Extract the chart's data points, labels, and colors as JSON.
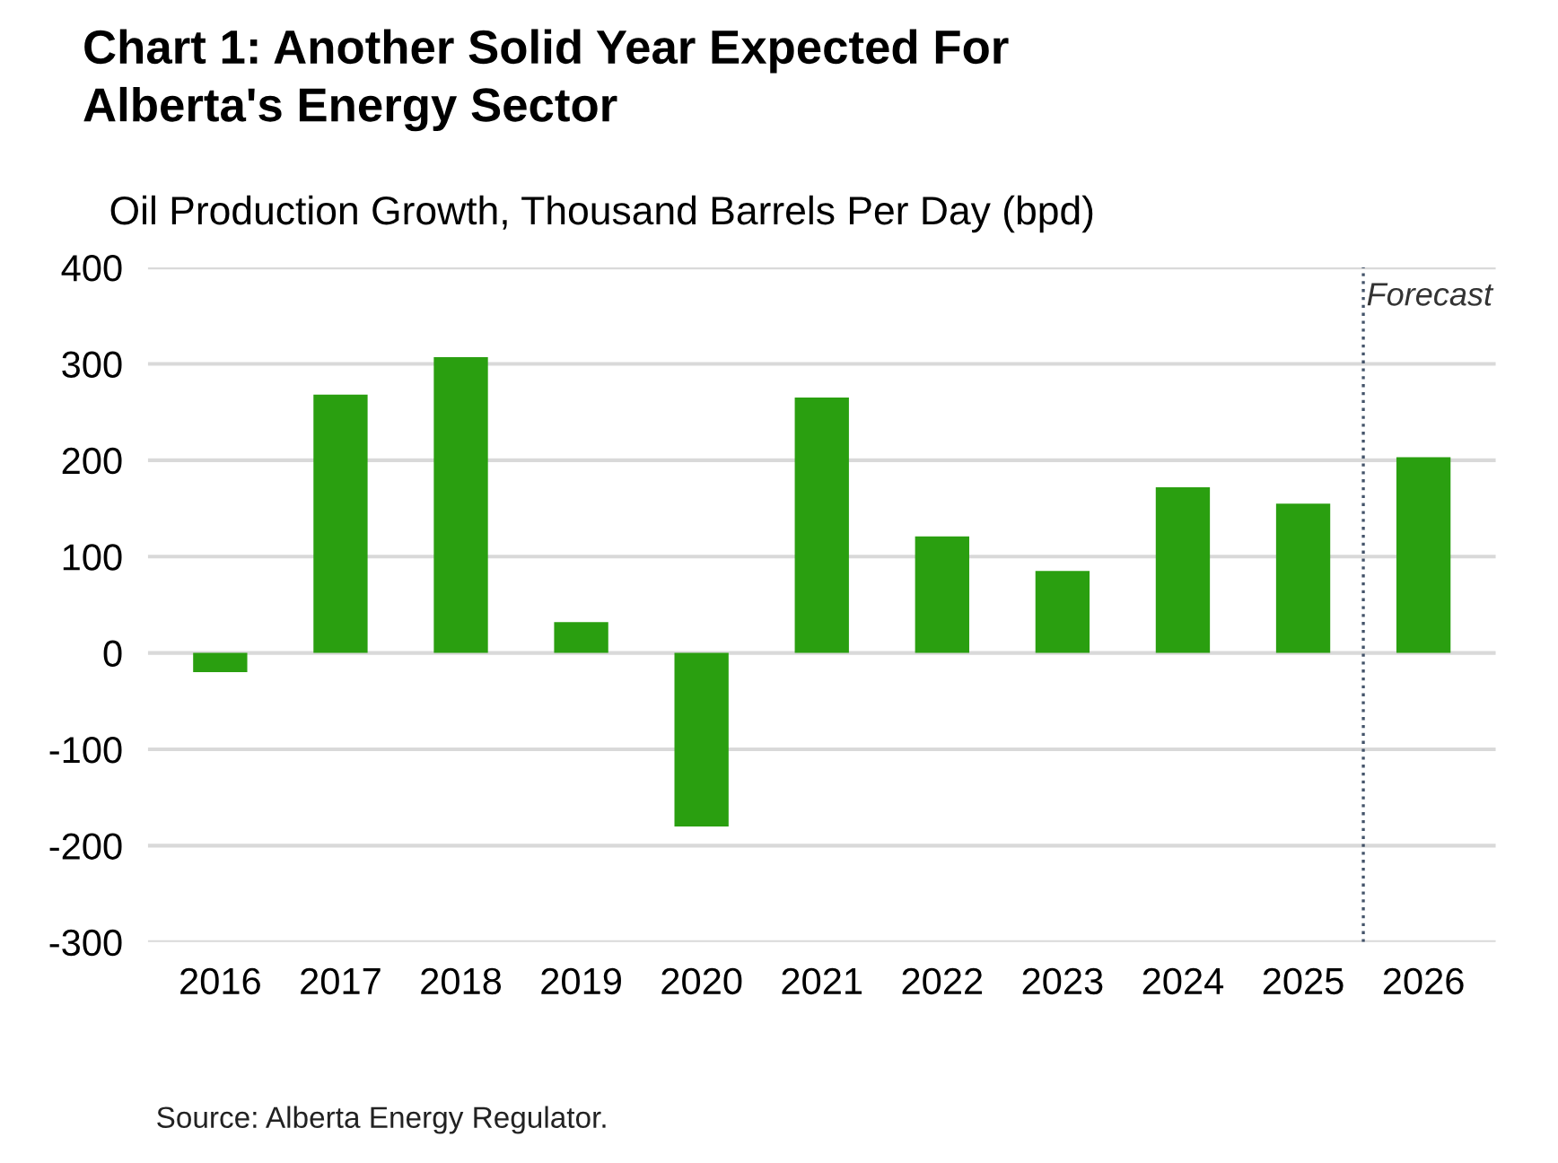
{
  "chart_data": {
    "type": "bar",
    "title": "Chart 1: Another Solid Year Expected For\nAlberta's Energy Sector",
    "subtitle": "Oil Production Growth, Thousand Barrels Per Day (bpd)",
    "categories": [
      "2016",
      "2017",
      "2018",
      "2019",
      "2020",
      "2021",
      "2022",
      "2023",
      "2024",
      "2025",
      "2026"
    ],
    "values": [
      -20,
      268,
      307,
      32,
      -180,
      265,
      121,
      85,
      172,
      155,
      203
    ],
    "color": "#2a9f10",
    "ylim": [
      -300,
      400
    ],
    "yticks": [
      -300,
      -200,
      -100,
      0,
      100,
      200,
      300,
      400
    ],
    "grid": "y",
    "ref_lines": [
      {
        "axis": "x",
        "value": "2026",
        "label": "Forecast",
        "color": "#44546a",
        "line_style": "dotted"
      }
    ],
    "annotations": [
      "Source: Alberta Energy Regulator."
    ]
  }
}
